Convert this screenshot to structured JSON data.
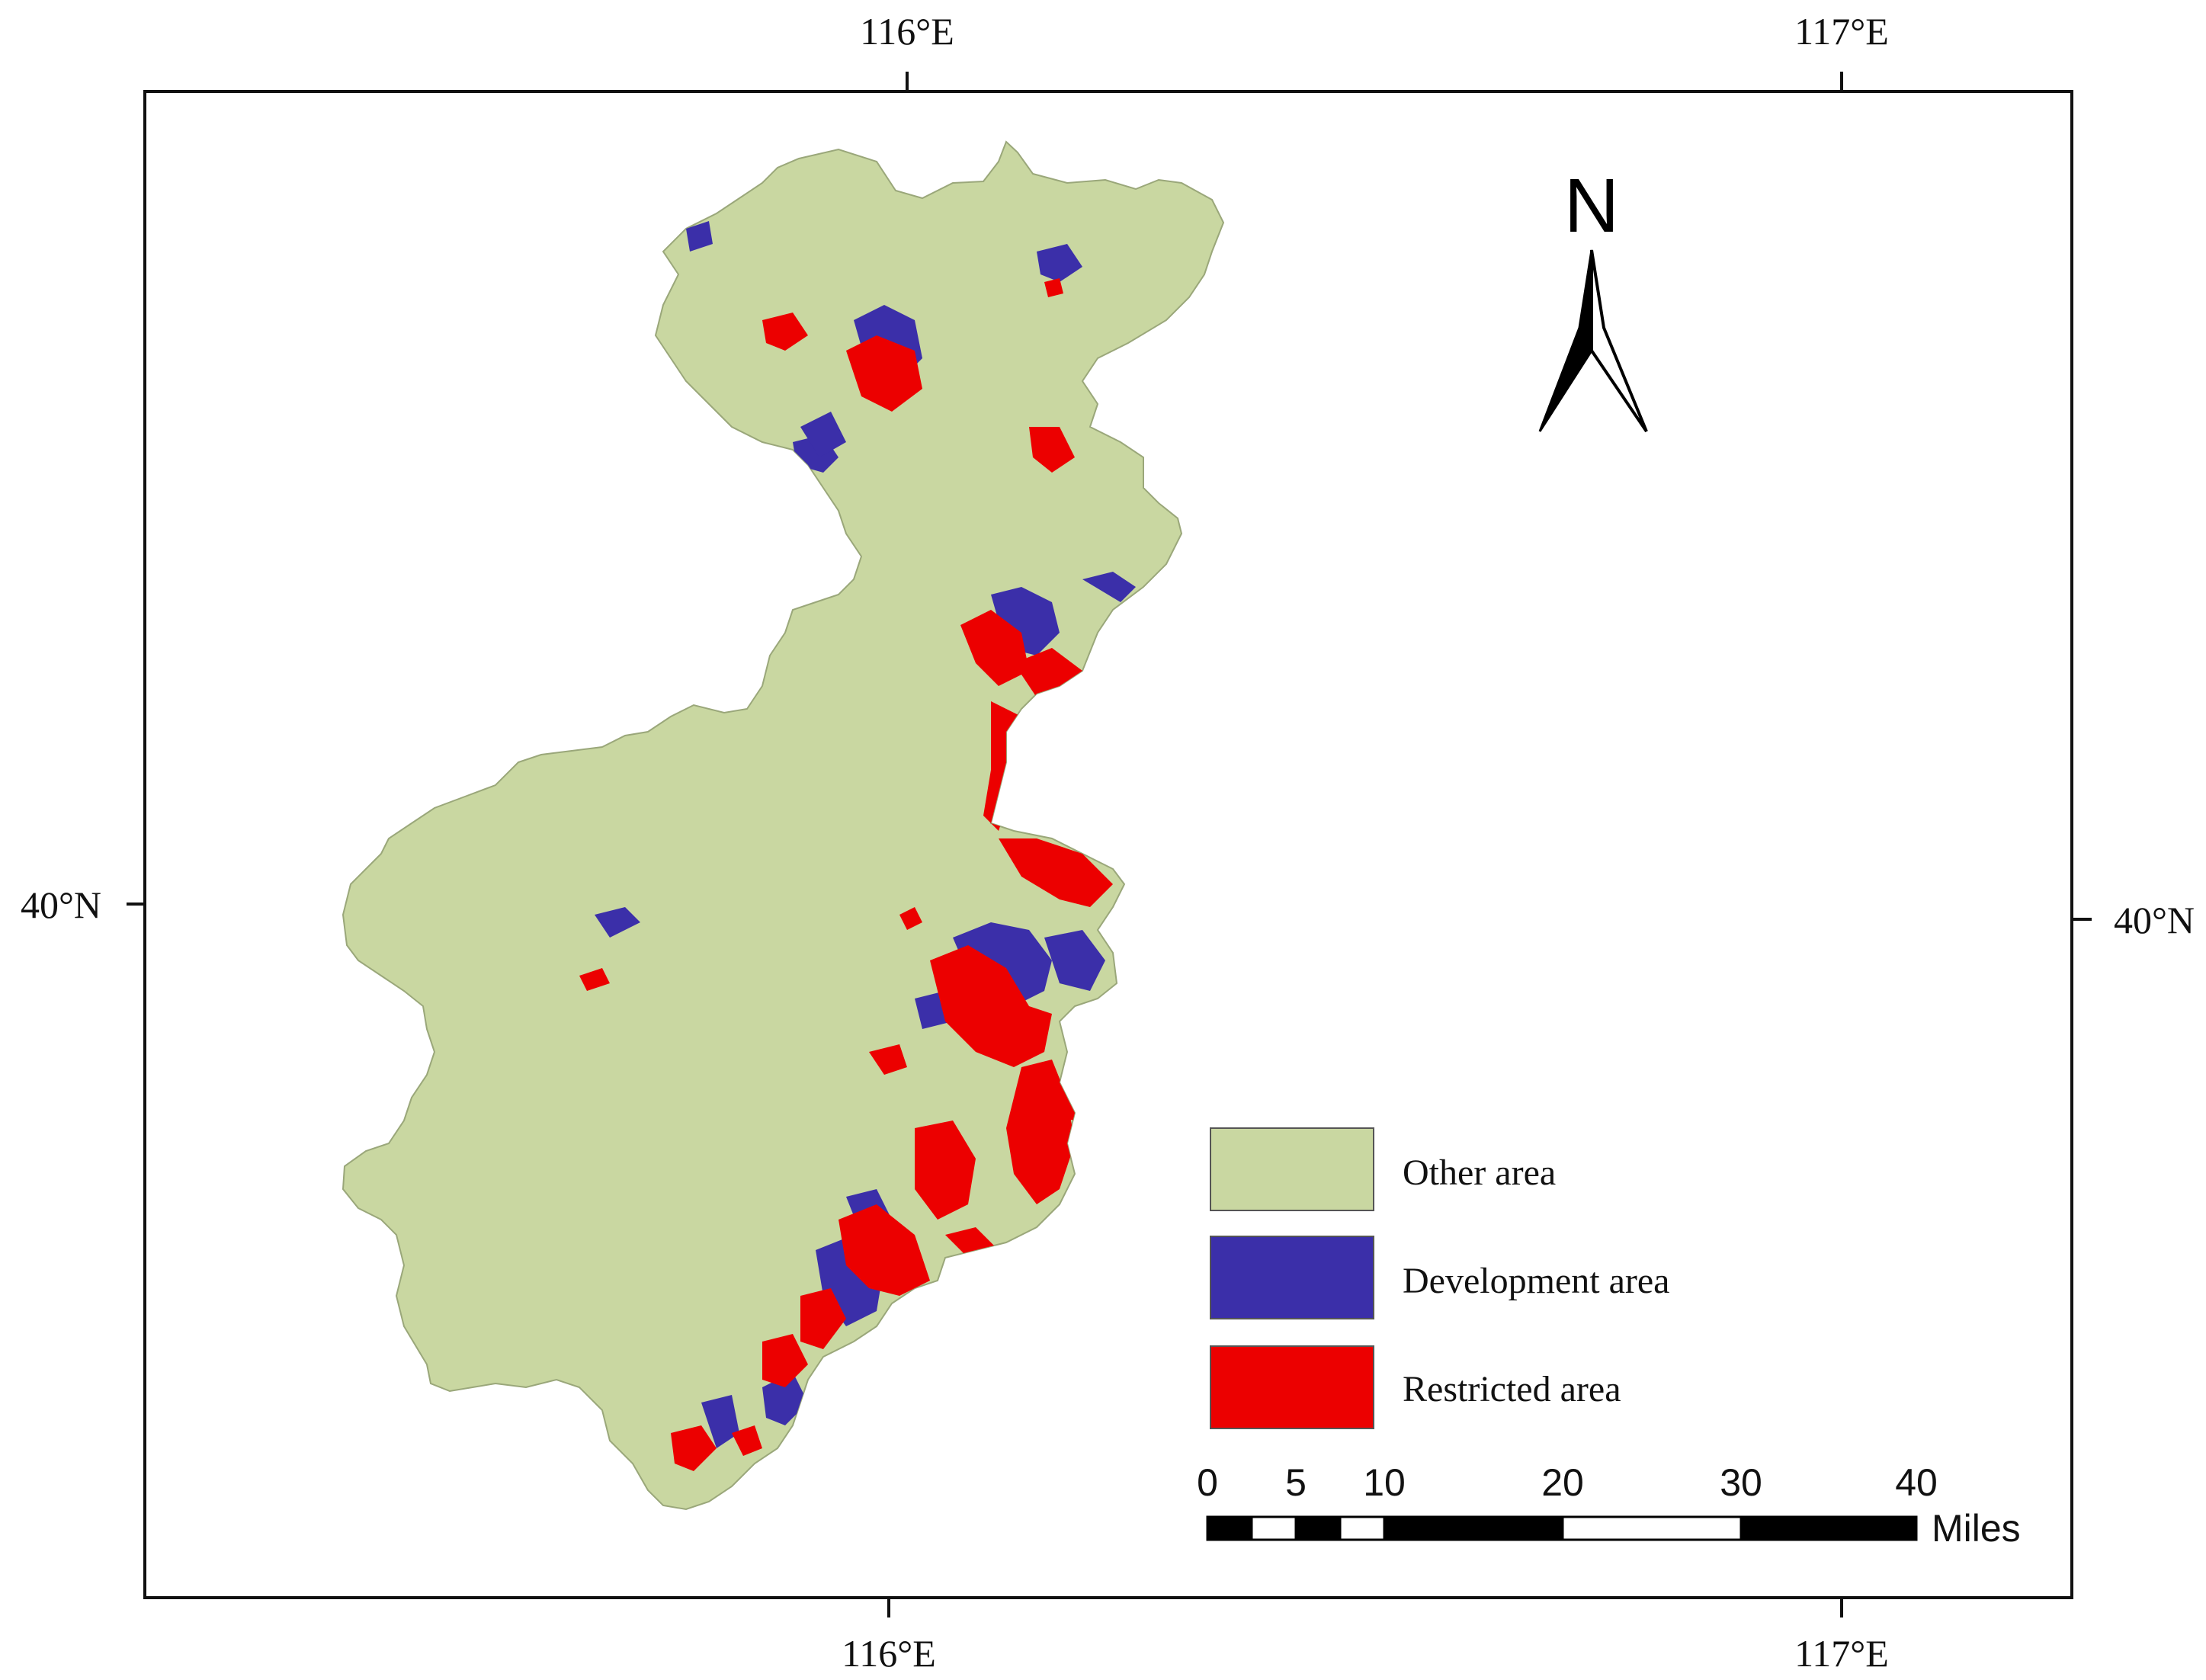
{
  "graticule": {
    "top_labels": [
      "116°E",
      "117°E"
    ],
    "bottom_labels": [
      "116°E",
      "117°E"
    ],
    "left_labels": [
      "40°N"
    ],
    "right_labels": [
      "40°N"
    ]
  },
  "north_arrow": {
    "label": "N",
    "icon": "north-arrow-icon"
  },
  "legend": {
    "items": [
      {
        "label": "Other area",
        "color": "#c9d7a1"
      },
      {
        "label": "Development area",
        "color": "#3b2fa9"
      },
      {
        "label": "Restricted area",
        "color": "#ec0000"
      }
    ]
  },
  "scale_bar": {
    "ticks": [
      "0",
      "5",
      "10",
      "20",
      "30",
      "40"
    ],
    "unit": "Miles"
  },
  "colors": {
    "other_area": "#c9d7a1",
    "development_area": "#3b2fa9",
    "restricted_area": "#ec0000",
    "frame": "#111111"
  }
}
